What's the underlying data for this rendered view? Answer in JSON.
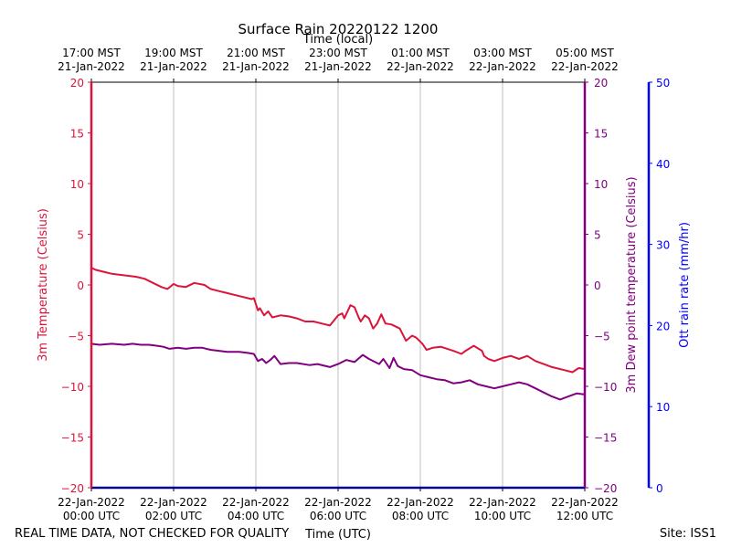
{
  "chart_data": {
    "type": "line",
    "title": "Surface Rain 20220122 1200",
    "xlabel_top": "Time (local)",
    "xlabel_bottom": "Time (UTC)",
    "ylabel_left": "3m Temperature (Celsius)",
    "ylabel_right_inner": "3m Dew point temperature (Celsius)",
    "ylabel_right_outer": "Ott rain rate (mm/hr)",
    "footer_left": "REAL TIME DATA, NOT CHECKED FOR QUALITY",
    "footer_right": "Site: ISS1",
    "xlim_hours": [
      0,
      12
    ],
    "ylim_temperature": [
      -20,
      20
    ],
    "ylim_rain_rate": [
      0,
      50
    ],
    "grid_x": true,
    "colors": {
      "temperature": "#dc143c",
      "dewpoint": "#800080",
      "rain_rate": "#0000ff",
      "grid": "#b0b0b0"
    },
    "x_ticks_utc": [
      {
        "hour": 0,
        "line1": "22-Jan-2022",
        "line2": "00:00 UTC"
      },
      {
        "hour": 2,
        "line1": "22-Jan-2022",
        "line2": "02:00 UTC"
      },
      {
        "hour": 4,
        "line1": "22-Jan-2022",
        "line2": "04:00 UTC"
      },
      {
        "hour": 6,
        "line1": "22-Jan-2022",
        "line2": "06:00 UTC"
      },
      {
        "hour": 8,
        "line1": "22-Jan-2022",
        "line2": "08:00 UTC"
      },
      {
        "hour": 10,
        "line1": "22-Jan-2022",
        "line2": "10:00 UTC"
      },
      {
        "hour": 12,
        "line1": "22-Jan-2022",
        "line2": "12:00 UTC"
      }
    ],
    "x_ticks_local": [
      {
        "hour": 0,
        "line1": "17:00 MST",
        "line2": "21-Jan-2022"
      },
      {
        "hour": 2,
        "line1": "19:00 MST",
        "line2": "21-Jan-2022"
      },
      {
        "hour": 4,
        "line1": "21:00 MST",
        "line2": "21-Jan-2022"
      },
      {
        "hour": 6,
        "line1": "23:00 MST",
        "line2": "21-Jan-2022"
      },
      {
        "hour": 8,
        "line1": "01:00 MST",
        "line2": "22-Jan-2022"
      },
      {
        "hour": 10,
        "line1": "03:00 MST",
        "line2": "22-Jan-2022"
      },
      {
        "hour": 12,
        "line1": "05:00 MST",
        "line2": "22-Jan-2022"
      }
    ],
    "y_ticks_temperature": [
      20,
      15,
      10,
      5,
      0,
      -5,
      -10,
      -15,
      -20
    ],
    "y_tick_labels_temperature": [
      "20",
      "15",
      "10",
      "5",
      "0",
      "−5",
      "−10",
      "−15",
      "−20"
    ],
    "y_ticks_rain_rate": [
      50,
      40,
      30,
      20,
      10,
      0
    ],
    "series": [
      {
        "name": "3m Temperature",
        "x": [
          0,
          0.1,
          0.3,
          0.5,
          0.7,
          0.9,
          1.1,
          1.3,
          1.5,
          1.7,
          1.85,
          2.0,
          2.1,
          2.3,
          2.5,
          2.75,
          2.9,
          3.1,
          3.3,
          3.6,
          3.9,
          3.95,
          4.05,
          4.1,
          4.2,
          4.3,
          4.4,
          4.6,
          4.8,
          5.0,
          5.2,
          5.4,
          5.6,
          5.8,
          5.9,
          6.0,
          6.1,
          6.15,
          6.3,
          6.4,
          6.5,
          6.55,
          6.65,
          6.75,
          6.85,
          6.95,
          7.05,
          7.15,
          7.3,
          7.5,
          7.65,
          7.8,
          7.9,
          8.05,
          8.15,
          8.3,
          8.5,
          8.8,
          9.0,
          9.1,
          9.3,
          9.5,
          9.55,
          9.65,
          9.8,
          10.0,
          10.2,
          10.4,
          10.6,
          10.8,
          11.0,
          11.2,
          11.5,
          11.7,
          11.85,
          12.0
        ],
        "values": [
          1.7,
          1.5,
          1.3,
          1.1,
          1.0,
          0.9,
          0.8,
          0.6,
          0.2,
          -0.2,
          -0.4,
          0.1,
          -0.1,
          -0.2,
          0.2,
          0.0,
          -0.4,
          -0.6,
          -0.8,
          -1.1,
          -1.4,
          -1.3,
          -2.5,
          -2.3,
          -3.0,
          -2.6,
          -3.2,
          -3.0,
          -3.1,
          -3.3,
          -3.6,
          -3.6,
          -3.8,
          -4.0,
          -3.5,
          -3.0,
          -2.8,
          -3.3,
          -2.0,
          -2.2,
          -3.2,
          -3.6,
          -3.0,
          -3.3,
          -4.3,
          -3.8,
          -2.9,
          -3.8,
          -3.9,
          -4.3,
          -5.5,
          -5.0,
          -5.2,
          -5.8,
          -6.4,
          -6.2,
          -6.1,
          -6.5,
          -6.8,
          -6.5,
          -6.0,
          -6.5,
          -7.0,
          -7.3,
          -7.5,
          -7.2,
          -7.0,
          -7.3,
          -7.0,
          -7.5,
          -7.8,
          -8.1,
          -8.4,
          -8.6,
          -8.2,
          -8.3
        ]
      },
      {
        "name": "3m Dew point temperature",
        "x": [
          0,
          0.2,
          0.5,
          0.8,
          1.0,
          1.2,
          1.4,
          1.6,
          1.75,
          1.9,
          2.1,
          2.3,
          2.5,
          2.7,
          2.9,
          3.1,
          3.3,
          3.6,
          3.8,
          3.95,
          4.05,
          4.15,
          4.25,
          4.35,
          4.45,
          4.6,
          4.8,
          5.0,
          5.3,
          5.5,
          5.8,
          6.0,
          6.2,
          6.4,
          6.6,
          6.75,
          6.9,
          7.0,
          7.1,
          7.25,
          7.35,
          7.45,
          7.6,
          7.8,
          8.0,
          8.2,
          8.4,
          8.6,
          8.8,
          9.0,
          9.2,
          9.4,
          9.6,
          9.8,
          10.0,
          10.2,
          10.4,
          10.6,
          10.8,
          11.0,
          11.2,
          11.4,
          11.6,
          11.8,
          12.0
        ],
        "values": [
          -5.8,
          -5.9,
          -5.8,
          -5.9,
          -5.8,
          -5.9,
          -5.9,
          -6.0,
          -6.1,
          -6.3,
          -6.2,
          -6.3,
          -6.2,
          -6.2,
          -6.4,
          -6.5,
          -6.6,
          -6.6,
          -6.7,
          -6.8,
          -7.5,
          -7.3,
          -7.7,
          -7.4,
          -7.0,
          -7.8,
          -7.7,
          -7.7,
          -7.9,
          -7.8,
          -8.1,
          -7.8,
          -7.4,
          -7.6,
          -6.9,
          -7.3,
          -7.6,
          -7.8,
          -7.3,
          -8.2,
          -7.2,
          -8.0,
          -8.3,
          -8.4,
          -8.9,
          -9.1,
          -9.3,
          -9.4,
          -9.7,
          -9.6,
          -9.4,
          -9.8,
          -10.0,
          -10.2,
          -10.0,
          -9.8,
          -9.6,
          -9.8,
          -10.2,
          -10.6,
          -11.0,
          -11.3,
          -11.0,
          -10.7,
          -10.8
        ]
      },
      {
        "name": "Ott rain rate",
        "x": [
          0,
          12
        ],
        "values": [
          0,
          0
        ]
      }
    ]
  }
}
